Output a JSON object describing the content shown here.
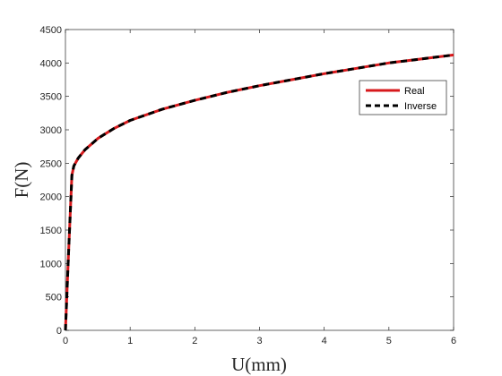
{
  "chart_data": {
    "type": "line",
    "title": "",
    "xlabel": "U(mm)",
    "ylabel": "F(N)",
    "xlim": [
      0,
      6
    ],
    "ylim": [
      0,
      4500
    ],
    "xticks": [
      "0",
      "1",
      "2",
      "3",
      "4",
      "5",
      "6"
    ],
    "yticks": [
      "0",
      "500",
      "1000",
      "1500",
      "2000",
      "2500",
      "3000",
      "3500",
      "4000",
      "4500"
    ],
    "grid": false,
    "legend_position": "top-right",
    "series": [
      {
        "name": "Real",
        "color": "#d7191c",
        "style": "solid",
        "x": [
          0,
          0.05,
          0.1,
          0.13,
          0.2,
          0.3,
          0.5,
          0.75,
          1.0,
          1.5,
          2.0,
          2.5,
          3.0,
          3.5,
          4.0,
          4.5,
          5.0,
          5.5,
          6.0
        ],
        "y": [
          0,
          1200,
          2320,
          2460,
          2580,
          2700,
          2870,
          3020,
          3140,
          3310,
          3440,
          3560,
          3660,
          3750,
          3840,
          3920,
          4000,
          4060,
          4120
        ]
      },
      {
        "name": "Inverse",
        "color": "#000000",
        "style": "dashed",
        "x": [
          0,
          0.05,
          0.1,
          0.13,
          0.2,
          0.3,
          0.5,
          0.75,
          1.0,
          1.5,
          2.0,
          2.5,
          3.0,
          3.5,
          4.0,
          4.5,
          5.0,
          5.5,
          6.0
        ],
        "y": [
          0,
          1200,
          2320,
          2460,
          2580,
          2700,
          2870,
          3020,
          3140,
          3310,
          3440,
          3560,
          3660,
          3750,
          3840,
          3920,
          4000,
          4060,
          4120
        ]
      }
    ]
  }
}
